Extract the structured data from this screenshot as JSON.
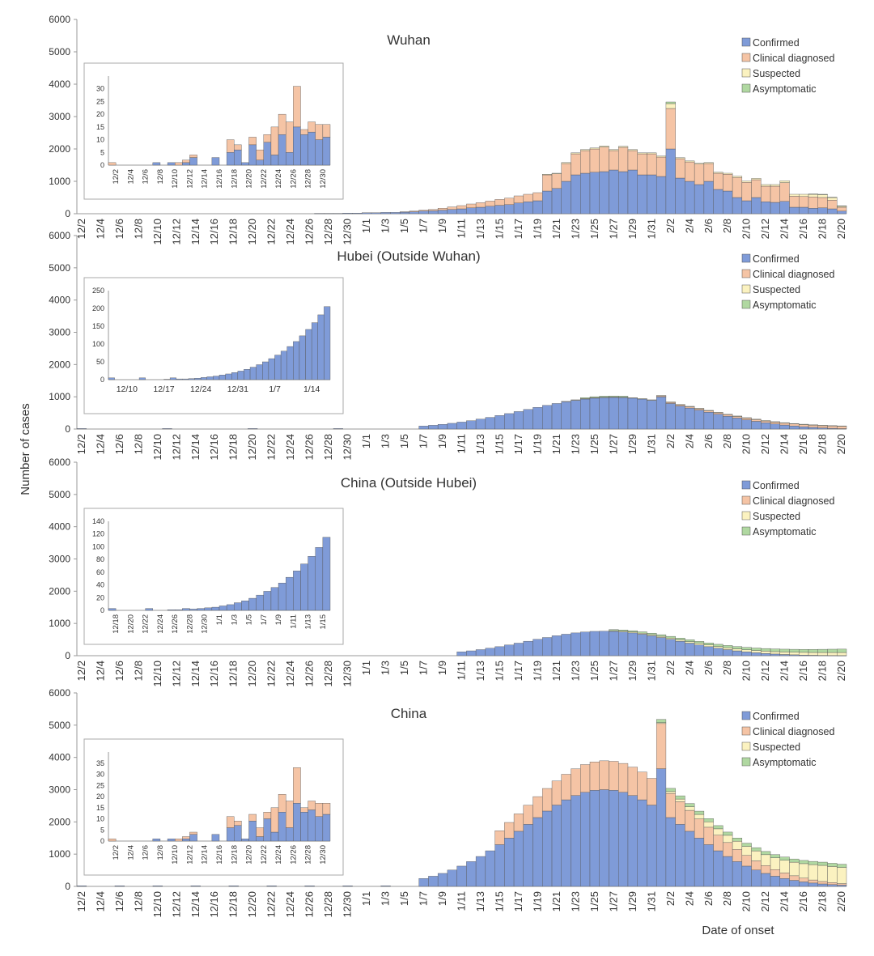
{
  "figure": {
    "ylabel": "Number of cases",
    "xlabel": "Date of onset"
  },
  "colors": {
    "Confirmed": "#7f9bd8",
    "Clinical diagnosed": "#f5c4a5",
    "Suspected": "#fbf2c0",
    "Asymptomatic": "#b0d8a1",
    "axis": "#9a9a9a",
    "text": "#333333"
  },
  "chart_data": [
    {
      "type": "bar",
      "stacked": true,
      "title": "Wuhan",
      "ylim": [
        0,
        6000
      ],
      "yticks": [
        0,
        1000,
        2000,
        3000,
        4000,
        5000,
        6000
      ],
      "x_start": "12/2",
      "x_end": "2/20",
      "xtick_labels": [
        "12/2",
        "12/4",
        "12/6",
        "12/8",
        "12/10",
        "12/12",
        "12/14",
        "12/16",
        "12/18",
        "12/20",
        "12/22",
        "12/24",
        "12/26",
        "12/28",
        "12/30",
        "1/1",
        "1/3",
        "1/5",
        "1/7",
        "1/9",
        "1/11",
        "1/13",
        "1/15",
        "1/17",
        "1/19",
        "1/21",
        "1/23",
        "1/25",
        "1/27",
        "1/29",
        "1/31",
        "2/2",
        "2/4",
        "2/6",
        "2/8",
        "2/10",
        "2/12",
        "2/14",
        "2/16",
        "2/18",
        "2/20"
      ],
      "legend": [
        "Confirmed",
        "Clinical diagnosed",
        "Suspected",
        "Asymptomatic"
      ],
      "legend_position": "top-right",
      "series": [
        {
          "name": "Confirmed",
          "values": [
            0,
            0,
            0,
            0,
            0,
            0,
            0,
            0,
            0,
            0,
            0,
            0,
            0,
            0,
            0,
            0,
            0,
            0,
            0,
            0,
            0,
            0,
            0,
            0,
            0,
            0,
            0,
            0,
            0,
            0,
            0,
            10,
            10,
            10,
            20,
            20,
            30,
            30,
            40,
            40,
            50,
            60,
            80,
            90,
            110,
            130,
            150,
            180,
            200,
            230,
            260,
            280,
            330,
            370,
            400,
            700,
            780,
            1000,
            1200,
            1250,
            1280,
            1300,
            1350,
            1300,
            1350,
            1200,
            1200,
            1150,
            2000,
            1100,
            1000,
            900,
            1000,
            750,
            700,
            500,
            400,
            500,
            370,
            350,
            380,
            200,
            200,
            170,
            180,
            150,
            80
          ]
        },
        {
          "name": "Clinical diagnosed",
          "values": [
            0,
            0,
            0,
            0,
            0,
            0,
            0,
            0,
            0,
            0,
            0,
            0,
            0,
            0,
            0,
            0,
            0,
            0,
            0,
            0,
            0,
            0,
            0,
            0,
            0,
            0,
            0,
            0,
            0,
            0,
            0,
            0,
            0,
            0,
            0,
            0,
            0,
            0,
            0,
            0,
            10,
            20,
            30,
            40,
            60,
            80,
            100,
            120,
            140,
            160,
            180,
            200,
            220,
            230,
            250,
            500,
            450,
            550,
            650,
            700,
            720,
            760,
            600,
            750,
            600,
            650,
            650,
            600,
            1250,
            600,
            600,
            630,
            550,
            500,
            520,
            620,
            570,
            550,
            480,
            500,
            580,
            340,
            330,
            350,
            320,
            270,
            120
          ]
        },
        {
          "name": "Suspected",
          "values": [
            0,
            0,
            0,
            0,
            0,
            0,
            0,
            0,
            0,
            0,
            0,
            0,
            0,
            0,
            0,
            0,
            0,
            0,
            0,
            0,
            0,
            0,
            0,
            0,
            0,
            0,
            0,
            0,
            0,
            0,
            0,
            0,
            0,
            0,
            0,
            0,
            0,
            0,
            0,
            0,
            0,
            0,
            0,
            0,
            0,
            0,
            0,
            0,
            0,
            0,
            0,
            0,
            0,
            0,
            0,
            20,
            20,
            30,
            30,
            30,
            30,
            30,
            30,
            30,
            30,
            30,
            30,
            30,
            150,
            30,
            30,
            30,
            30,
            30,
            30,
            40,
            40,
            40,
            50,
            50,
            60,
            60,
            70,
            80,
            90,
            80,
            40
          ]
        },
        {
          "name": "Asymptomatic",
          "values": [
            0,
            0,
            0,
            0,
            0,
            0,
            0,
            0,
            0,
            0,
            0,
            0,
            0,
            0,
            0,
            0,
            0,
            0,
            0,
            0,
            0,
            0,
            0,
            0,
            0,
            0,
            0,
            0,
            0,
            0,
            0,
            0,
            0,
            0,
            0,
            0,
            0,
            0,
            0,
            0,
            0,
            0,
            0,
            0,
            0,
            0,
            0,
            0,
            0,
            0,
            0,
            0,
            0,
            0,
            0,
            0,
            0,
            0,
            0,
            0,
            0,
            0,
            0,
            0,
            0,
            0,
            0,
            0,
            50,
            0,
            0,
            0,
            0,
            0,
            0,
            0,
            0,
            0,
            0,
            0,
            0,
            0,
            0,
            10,
            10,
            10,
            5
          ]
        }
      ],
      "inset": {
        "ylim": [
          0,
          35
        ],
        "yticks": [
          0,
          5,
          10,
          15,
          20,
          25,
          30
        ],
        "xtick_labels": [
          "12/2",
          "12/4",
          "12/6",
          "12/8",
          "12/10",
          "12/12",
          "12/14",
          "12/16",
          "12/18",
          "12/20",
          "12/22",
          "12/24",
          "12/26",
          "12/28",
          "12/30"
        ],
        "series": [
          {
            "name": "Confirmed",
            "values": [
              0,
              0,
              0,
              0,
              0,
              0,
              1,
              0,
              0,
              0,
              0,
              7,
              0,
              0,
              3,
              0,
              0,
              1,
              0,
              4,
              0,
              0,
              1,
              1,
              0,
              1,
              0,
              3,
              1,
              0,
              0,
              2,
              0,
              0,
              1,
              1,
              1,
              0,
              0,
              0,
              0,
              0,
              0,
              0,
              0,
              1,
              0,
              0,
              2,
              0,
              0,
              0,
              0,
              1,
              4,
              2,
              0,
              1,
              0,
              3,
              0,
              0,
              0,
              0,
              0,
              0,
              0,
              0,
              8,
              4,
              0,
              1,
              0,
              0,
              0,
              3,
              4,
              0,
              0,
              1,
              2,
              0,
              0,
              1,
              2,
              0,
              0,
              1,
              2
            ]
          },
          {
            "name": "Clinical diagnosed",
            "values": [
              0,
              0,
              0,
              0,
              0,
              0,
              0,
              0,
              0,
              0,
              0,
              0,
              0,
              0,
              0,
              0,
              0,
              0,
              0,
              0,
              0,
              0,
              0,
              0,
              0,
              0,
              0,
              0,
              0,
              0,
              0,
              0,
              0,
              0,
              0,
              0,
              0,
              0,
              0,
              0,
              0,
              0,
              0,
              0,
              0,
              0,
              0,
              0,
              0,
              0,
              0,
              0,
              0,
              0,
              0,
              0,
              0,
              0,
              0,
              0,
              0,
              0,
              0,
              0,
              0,
              0,
              0,
              0,
              0,
              0,
              0,
              0,
              0,
              0,
              0,
              0,
              0,
              0,
              0,
              0,
              0,
              0,
              0,
              0,
              0,
              0,
              0,
              0,
              0
            ]
          }
        ],
        "daily": {
          "confirmed": [
            0,
            0,
            0,
            0,
            0,
            0,
            1,
            0,
            0,
            0,
            0,
            1,
            0,
            0,
            1,
            0,
            0,
            1,
            0,
            1,
            0,
            0,
            0,
            1,
            0,
            2,
            3,
            4,
            6,
            2,
            4,
            2,
            4,
            5,
            2,
            4,
            1,
            0,
            1
          ],
          "clinical": [
            1,
            0,
            0,
            0,
            0,
            0,
            0,
            0,
            0,
            0,
            0,
            1,
            0,
            0,
            2,
            0,
            0,
            0,
            0,
            0,
            0,
            0,
            0,
            0,
            0,
            0,
            0,
            0,
            0,
            0,
            0,
            0,
            0,
            0,
            0,
            0,
            0,
            0,
            0
          ]
        },
        "confirmed": [
          0,
          0,
          0,
          0,
          0,
          0,
          1,
          0,
          1,
          2,
          5,
          0,
          0,
          5,
          0,
          6,
          5,
          8,
          3,
          9,
          0,
          12,
          0,
          11,
          15,
          14,
          13,
          9,
          0,
          1,
          0
        ],
        "clinical": [
          1,
          0,
          0,
          0,
          0,
          0,
          0,
          0,
          1,
          0,
          0,
          0,
          0,
          0,
          0,
          0,
          0,
          0,
          0,
          0,
          0,
          0,
          0,
          0,
          0,
          0,
          0,
          0,
          0,
          0,
          0
        ]
      }
    },
    {
      "type": "bar",
      "stacked": true,
      "title": "Hubei (Outside Wuhan)",
      "ylim": [
        0,
        6000
      ],
      "yticks": [
        0,
        1000,
        2000,
        3000,
        4000,
        5000,
        6000
      ],
      "x_start": "12/2",
      "x_end": "2/20",
      "xtick_labels": [
        "12/2",
        "12/4",
        "12/6",
        "12/8",
        "12/10",
        "12/12",
        "12/14",
        "12/16",
        "12/18",
        "12/20",
        "12/22",
        "12/24",
        "12/26",
        "12/28",
        "12/30",
        "1/1",
        "1/3",
        "1/5",
        "1/7",
        "1/9",
        "1/11",
        "1/13",
        "1/15",
        "1/17",
        "1/19",
        "1/21",
        "1/23",
        "1/25",
        "1/27",
        "1/29",
        "1/31",
        "2/2",
        "2/4",
        "2/6",
        "2/8",
        "2/10",
        "2/12",
        "2/14",
        "2/16",
        "2/18",
        "2/20"
      ],
      "legend": [
        "Confirmed",
        "Clinical diagnosed",
        "Suspected",
        "Asymptomatic"
      ],
      "legend_position": "top-right",
      "inset": {
        "ylim": [
          0,
          250
        ],
        "yticks": [
          0,
          50,
          100,
          150,
          200,
          250
        ],
        "xtick_labels": [
          "12/10",
          "12/17",
          "12/24",
          "12/31",
          "1/7",
          "1/14"
        ]
      }
    },
    {
      "type": "bar",
      "stacked": true,
      "title": "China (Outside Hubei)",
      "ylim": [
        0,
        6000
      ],
      "yticks": [
        0,
        1000,
        2000,
        3000,
        4000,
        5000,
        6000
      ],
      "x_start": "12/2",
      "x_end": "2/20",
      "xtick_labels": [
        "12/2",
        "12/4",
        "12/6",
        "12/8",
        "12/10",
        "12/12",
        "12/14",
        "12/16",
        "12/18",
        "12/20",
        "12/22",
        "12/24",
        "12/26",
        "12/28",
        "12/30",
        "1/1",
        "1/3",
        "1/5",
        "1/7",
        "1/9",
        "1/11",
        "1/13",
        "1/15",
        "1/17",
        "1/19",
        "1/21",
        "1/23",
        "1/25",
        "1/27",
        "1/29",
        "1/31",
        "2/2",
        "2/4",
        "2/6",
        "2/8",
        "2/10",
        "2/12",
        "2/14",
        "2/16",
        "2/18",
        "2/20"
      ],
      "legend": [
        "Confirmed",
        "Clinical diagnosed",
        "Suspected",
        "Asymptomatic"
      ],
      "legend_position": "top-right",
      "inset": {
        "ylim": [
          0,
          140
        ],
        "yticks": [
          0,
          20,
          40,
          60,
          80,
          100,
          120,
          140
        ],
        "xtick_labels": [
          "12/18",
          "12/20",
          "12/22",
          "12/24",
          "12/26",
          "12/28",
          "12/30",
          "1/1",
          "1/3",
          "1/5",
          "1/7",
          "1/9",
          "1/11",
          "1/13",
          "1/15"
        ]
      }
    },
    {
      "type": "bar",
      "stacked": true,
      "title": "China",
      "ylim": [
        0,
        6000
      ],
      "yticks": [
        0,
        1000,
        2000,
        3000,
        4000,
        5000,
        6000
      ],
      "x_start": "12/2",
      "x_end": "2/20",
      "xtick_labels": [
        "12/2",
        "12/4",
        "12/6",
        "12/8",
        "12/10",
        "12/12",
        "12/14",
        "12/16",
        "12/18",
        "12/20",
        "12/22",
        "12/24",
        "12/26",
        "12/28",
        "12/30",
        "1/1",
        "1/3",
        "1/5",
        "1/7",
        "1/9",
        "1/11",
        "1/13",
        "1/15",
        "1/17",
        "1/19",
        "1/21",
        "1/23",
        "1/25",
        "1/27",
        "1/29",
        "1/31",
        "2/2",
        "2/4",
        "2/6",
        "2/8",
        "2/10",
        "2/12",
        "2/14",
        "2/16",
        "2/18",
        "2/20"
      ],
      "legend": [
        "Confirmed",
        "Clinical diagnosed",
        "Suspected",
        "Asymptomatic"
      ],
      "legend_position": "top-right",
      "inset": {
        "ylim": [
          0,
          40
        ],
        "yticks": [
          0,
          5,
          10,
          15,
          20,
          25,
          30,
          35
        ],
        "xtick_labels": [
          "12/2",
          "12/4",
          "12/6",
          "12/8",
          "12/10",
          "12/12",
          "12/14",
          "12/16",
          "12/18",
          "12/20",
          "12/22",
          "12/24",
          "12/26",
          "12/28",
          "12/30"
        ]
      }
    }
  ]
}
